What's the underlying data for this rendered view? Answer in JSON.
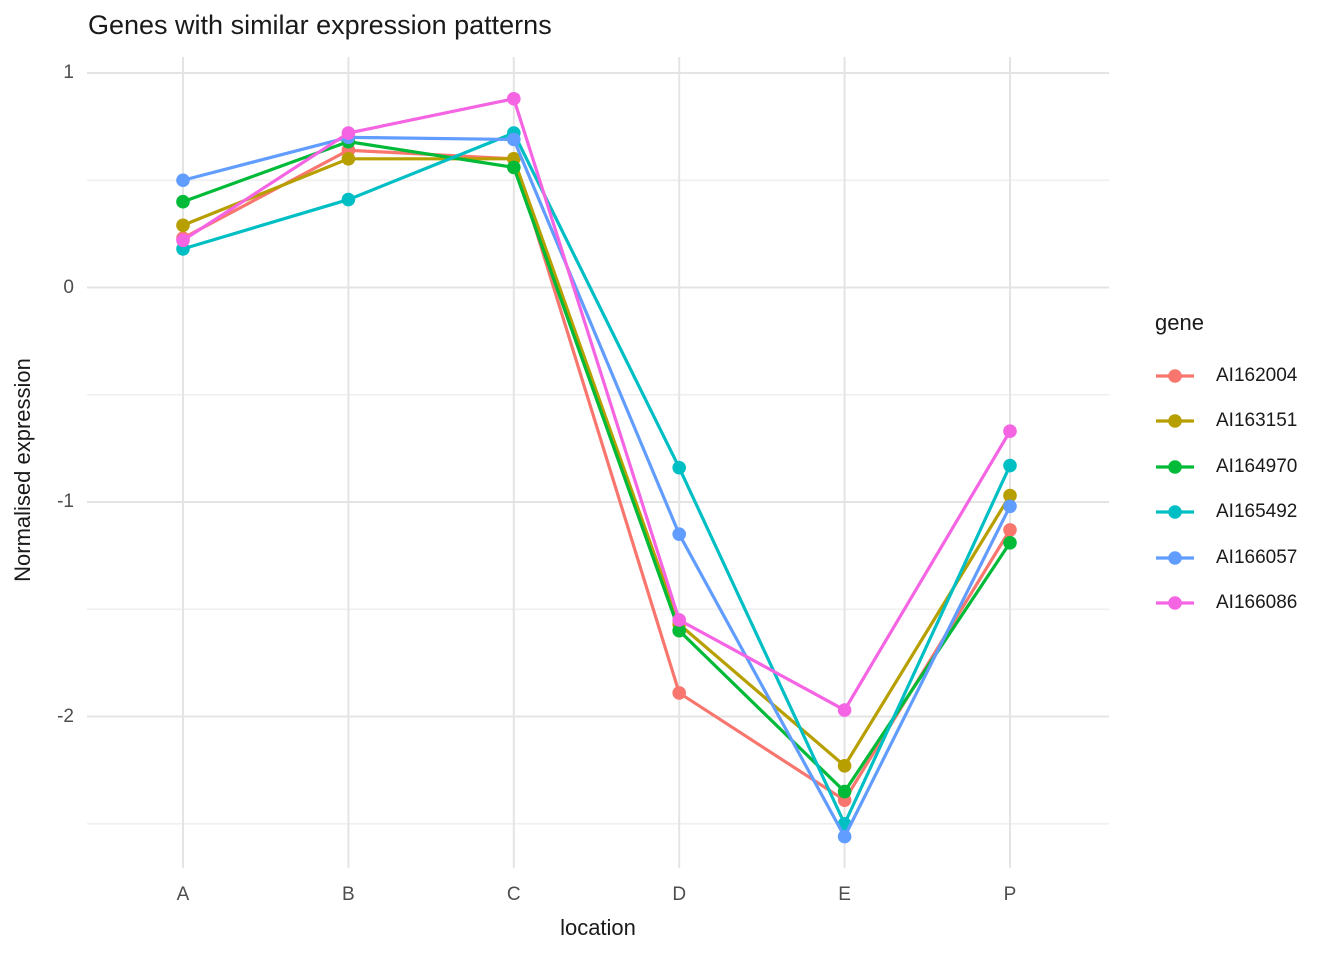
{
  "title": "Genes with similar expression patterns",
  "chart_data": {
    "type": "line",
    "title": "Genes with similar expression patterns",
    "xlabel": "location",
    "ylabel": "Normalised expression",
    "legend_title": "gene",
    "legend_position": "right",
    "grid": true,
    "categories": [
      "A",
      "B",
      "C",
      "D",
      "E",
      "P"
    ],
    "series": [
      {
        "name": "AI162004",
        "color": "#F8766D",
        "values": [
          0.23,
          0.64,
          0.6,
          -1.89,
          -2.39,
          -1.13
        ]
      },
      {
        "name": "AI163151",
        "color": "#B79F00",
        "values": [
          0.29,
          0.6,
          0.6,
          -1.57,
          -2.23,
          -0.97
        ]
      },
      {
        "name": "AI164970",
        "color": "#00BA38",
        "values": [
          0.4,
          0.68,
          0.56,
          -1.6,
          -2.35,
          -1.19
        ]
      },
      {
        "name": "AI165492",
        "color": "#00BFC4",
        "values": [
          0.18,
          0.41,
          0.72,
          -0.84,
          -2.5,
          -0.83
        ]
      },
      {
        "name": "AI166057",
        "color": "#619CFF",
        "values": [
          0.5,
          0.7,
          0.69,
          -1.15,
          -2.56,
          -1.02
        ]
      },
      {
        "name": "AI166086",
        "color": "#F564E3",
        "values": [
          0.22,
          0.72,
          0.88,
          -1.55,
          -1.97,
          -0.67
        ]
      }
    ],
    "ylim": [
      -2.71,
      1.07
    ],
    "y_major_ticks": [
      1,
      0,
      -1,
      -2
    ],
    "y_minor_ticks": [
      0.5,
      -0.5,
      -1.5,
      -2.5
    ]
  },
  "style": {
    "major_grid_color": "#E4E4E4",
    "minor_grid_color": "#F0F0F0",
    "tick_label_color": "#4d4d4d",
    "text_color": "#1a1a1a",
    "background": "#ffffff"
  }
}
